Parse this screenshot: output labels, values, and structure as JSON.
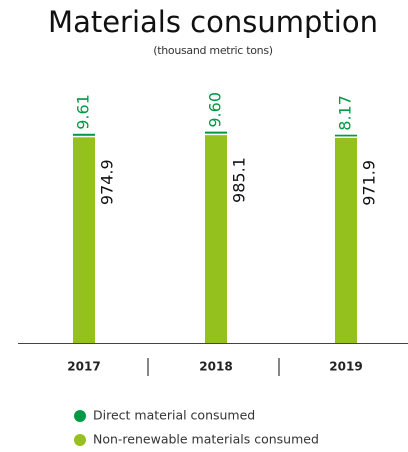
{
  "chart_data": {
    "type": "stacked_bar",
    "title": "Materials consumption",
    "subtitle": "(thousand metric tons)",
    "categories": [
      "2017",
      "2018",
      "2019"
    ],
    "series": [
      {
        "name": "Direct material consumed",
        "color": "#009a44",
        "values": [
          9.61,
          9.6,
          8.17
        ],
        "value_labels": [
          "9.61",
          "9.60",
          "8.17"
        ]
      },
      {
        "name": "Non-renewable materials consumed",
        "color": "#95c11f",
        "values": [
          974.9,
          985.1,
          971.9
        ]
      }
    ]
  }
}
